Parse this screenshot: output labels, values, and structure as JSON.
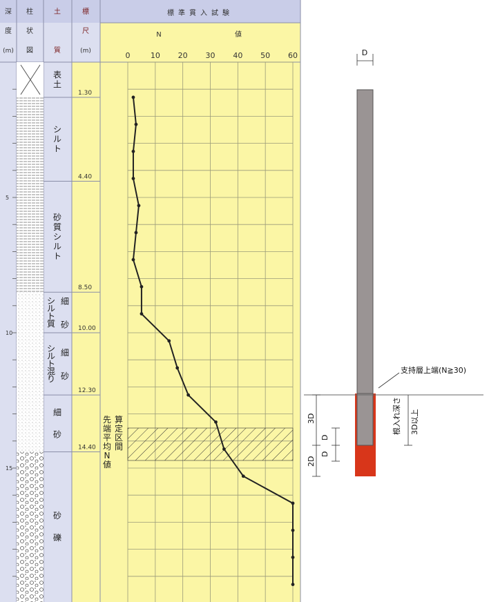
{
  "header": {
    "depth": [
      "深",
      "度",
      "(m)"
    ],
    "column": [
      "柱",
      "状",
      "図"
    ],
    "soil": [
      "土",
      "",
      "質"
    ],
    "scale": [
      "標",
      "尺",
      "(m)"
    ],
    "spt_title": "標準貫入試験",
    "n_label": "N",
    "value_label": "値"
  },
  "depth_ticks": [
    "5",
    "10",
    "15"
  ],
  "soil_layers": [
    {
      "name": "表土",
      "bottom": "1.30",
      "top_m": 0,
      "bottom_m": 1.3
    },
    {
      "name": "シルト",
      "bottom": "4.40",
      "top_m": 1.3,
      "bottom_m": 4.4
    },
    {
      "name": "砂質シルト",
      "bottom": "8.50",
      "top_m": 4.4,
      "bottom_m": 8.5
    },
    {
      "name": "細",
      "name2": "シルト質",
      "name3": "砂",
      "bottom": "10.00",
      "top_m": 8.5,
      "bottom_m": 10.0
    },
    {
      "name": "細",
      "name2": "シルト混り",
      "name3": "砂",
      "bottom": "12.30",
      "top_m": 10.0,
      "bottom_m": 12.3
    },
    {
      "name": "細",
      "name2": "砂",
      "bottom": "14.40",
      "top_m": 12.3,
      "bottom_m": 14.4
    },
    {
      "name": "砂",
      "name2": "礫",
      "bottom": "",
      "top_m": 14.4,
      "bottom_m": 20
    }
  ],
  "chart_data": {
    "type": "line",
    "x_ticks": [
      "0",
      "10",
      "20",
      "30",
      "40",
      "50",
      "60"
    ],
    "xlim": [
      0,
      60
    ],
    "ylabel": "深度 (m)",
    "series": [
      {
        "depth_m": [
          1.3,
          2.3,
          3.3,
          4.3,
          5.3,
          6.3,
          7.3,
          8.3,
          9.3,
          10.3,
          11.3,
          12.3,
          13.3,
          14.3,
          15.3,
          16.3,
          17.3,
          18.3,
          19.3
        ],
        "n": [
          2,
          3,
          2,
          2,
          4,
          3,
          2,
          5,
          5,
          15,
          18,
          22,
          32,
          35,
          42,
          60,
          60,
          60,
          60
        ]
      }
    ],
    "hatched_interval": "先端平均N値算定区間"
  },
  "pile": {
    "diameter_label": "D",
    "support_layer_label": "支持層上端(N≧30)",
    "embed_label": "根入れ深さ",
    "embed_value": "3D以上",
    "dim_3d": "3D",
    "dim_2d": "2D",
    "dim_d1": "D",
    "dim_d2": "D",
    "colors": {
      "shaft": "#9a9494",
      "tip": "#d8361a"
    }
  }
}
